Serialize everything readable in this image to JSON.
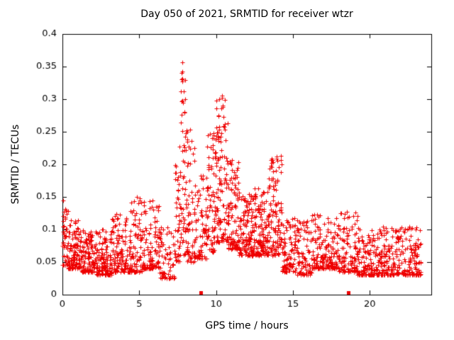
{
  "chart_data": {
    "type": "scatter",
    "title": "Day 050 of 2021, SRMTID for receiver wtzr",
    "xlabel": "GPS time / hours",
    "ylabel": "SRMTID / TECUs",
    "xlim": [
      0,
      24
    ],
    "ylim": [
      0,
      0.4
    ],
    "grid": false,
    "legend": "none",
    "marker": "plus",
    "marker_color": "#ee0000",
    "axis_color": "#000000",
    "seed": 42,
    "xticks": [
      {
        "v": 0,
        "label": "0"
      },
      {
        "v": 5,
        "label": "5"
      },
      {
        "v": 10,
        "label": "10"
      },
      {
        "v": 15,
        "label": "15"
      },
      {
        "v": 20,
        "label": "20"
      }
    ],
    "yticks": [
      {
        "v": 0,
        "label": "0"
      },
      {
        "v": 0.05,
        "label": "0.05"
      },
      {
        "v": 0.1,
        "label": "0.1"
      },
      {
        "v": 0.15,
        "label": "0.15"
      },
      {
        "v": 0.2,
        "label": "0.2"
      },
      {
        "v": 0.25,
        "label": "0.25"
      },
      {
        "v": 0.3,
        "label": "0.3"
      },
      {
        "v": 0.35,
        "label": "0.35"
      },
      {
        "v": 0.4,
        "label": "0.4"
      }
    ],
    "segments": [
      {
        "x0": 0.0,
        "x1": 0.35,
        "n": 45,
        "ymin": 0.045,
        "ymax": 0.145,
        "exp": 1.6
      },
      {
        "x0": 0.35,
        "x1": 1.2,
        "n": 110,
        "ymin": 0.04,
        "ymax": 0.115,
        "exp": 2.1
      },
      {
        "x0": 1.2,
        "x1": 2.2,
        "n": 120,
        "ymin": 0.035,
        "ymax": 0.1,
        "exp": 2.1
      },
      {
        "x0": 2.2,
        "x1": 3.2,
        "n": 120,
        "ymin": 0.03,
        "ymax": 0.1,
        "exp": 2.0
      },
      {
        "x0": 3.2,
        "x1": 4.2,
        "n": 110,
        "ymin": 0.035,
        "ymax": 0.125,
        "exp": 2.2
      },
      {
        "x0": 4.2,
        "x1": 5.2,
        "n": 100,
        "ymin": 0.035,
        "ymax": 0.15,
        "exp": 2.4
      },
      {
        "x0": 5.2,
        "x1": 6.3,
        "n": 110,
        "ymin": 0.04,
        "ymax": 0.145,
        "exp": 2.3
      },
      {
        "x0": 6.3,
        "x1": 7.3,
        "n": 70,
        "ymin": 0.025,
        "ymax": 0.105,
        "exp": 2.0
      },
      {
        "x0": 7.3,
        "x1": 7.65,
        "n": 40,
        "ymin": 0.05,
        "ymax": 0.23,
        "exp": 1.5
      },
      {
        "x0": 7.65,
        "x1": 8.05,
        "n": 55,
        "ymin": 0.06,
        "ymax": 0.355,
        "exp": 1.5
      },
      {
        "x0": 8.05,
        "x1": 8.6,
        "n": 60,
        "ymin": 0.05,
        "ymax": 0.26,
        "exp": 1.8
      },
      {
        "x0": 8.6,
        "x1": 9.4,
        "n": 75,
        "ymin": 0.055,
        "ymax": 0.185,
        "exp": 1.8
      },
      {
        "x0": 9.4,
        "x1": 9.95,
        "n": 70,
        "ymin": 0.065,
        "ymax": 0.25,
        "exp": 1.7
      },
      {
        "x0": 9.95,
        "x1": 10.75,
        "n": 115,
        "ymin": 0.08,
        "ymax": 0.305,
        "exp": 1.6
      },
      {
        "x0": 10.75,
        "x1": 11.5,
        "n": 100,
        "ymin": 0.07,
        "ymax": 0.21,
        "exp": 1.8
      },
      {
        "x0": 11.5,
        "x1": 12.5,
        "n": 130,
        "ymin": 0.06,
        "ymax": 0.155,
        "exp": 1.9
      },
      {
        "x0": 12.5,
        "x1": 13.4,
        "n": 120,
        "ymin": 0.06,
        "ymax": 0.17,
        "exp": 1.9
      },
      {
        "x0": 13.4,
        "x1": 14.3,
        "n": 110,
        "ymin": 0.06,
        "ymax": 0.215,
        "exp": 1.6
      },
      {
        "x0": 14.3,
        "x1": 15.2,
        "n": 90,
        "ymin": 0.035,
        "ymax": 0.125,
        "exp": 2.0
      },
      {
        "x0": 15.2,
        "x1": 16.2,
        "n": 85,
        "ymin": 0.03,
        "ymax": 0.115,
        "exp": 2.2
      },
      {
        "x0": 16.2,
        "x1": 18.0,
        "n": 175,
        "ymin": 0.04,
        "ymax": 0.125,
        "exp": 2.2
      },
      {
        "x0": 18.0,
        "x1": 19.2,
        "n": 110,
        "ymin": 0.035,
        "ymax": 0.13,
        "exp": 2.2
      },
      {
        "x0": 19.2,
        "x1": 21.0,
        "n": 165,
        "ymin": 0.03,
        "ymax": 0.105,
        "exp": 2.2
      },
      {
        "x0": 21.0,
        "x1": 23.3,
        "n": 215,
        "ymin": 0.03,
        "ymax": 0.105,
        "exp": 2.2
      }
    ],
    "peaks": [
      {
        "x": 7.78,
        "y": 0.356
      },
      {
        "x": 7.82,
        "y": 0.342
      },
      {
        "x": 7.75,
        "y": 0.33
      },
      {
        "x": 7.9,
        "y": 0.312
      },
      {
        "x": 7.85,
        "y": 0.295
      },
      {
        "x": 8.3,
        "y": 0.253
      },
      {
        "x": 9.85,
        "y": 0.248
      },
      {
        "x": 10.38,
        "y": 0.305
      },
      {
        "x": 10.45,
        "y": 0.29
      },
      {
        "x": 10.15,
        "y": 0.275
      },
      {
        "x": 10.55,
        "y": 0.262
      },
      {
        "x": 13.6,
        "y": 0.196
      },
      {
        "x": 13.95,
        "y": 0.212
      },
      {
        "x": 14.0,
        "y": 0.205
      }
    ],
    "axis_squares": [
      {
        "x": 9.02,
        "y": 0.003
      },
      {
        "x": 18.62,
        "y": 0.003
      }
    ]
  }
}
